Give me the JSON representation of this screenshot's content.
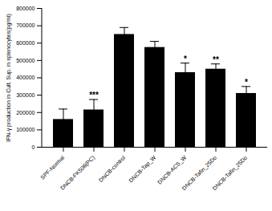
{
  "chart_data": {
    "type": "bar",
    "y_label": "IFN-γ production in Cult. Sup. in splenocytes(pg/ml)",
    "categories": [
      "SPF-Normal",
      "DNCB-FK506(PC)",
      "DNCB-control",
      "DNCB-Tap_W",
      "DNCB-ACS_W",
      "DNCB-Tafin_25Do",
      "DNCB-Tafin_25Do"
    ],
    "values": [
      160000,
      215000,
      650000,
      575000,
      430000,
      450000,
      310000
    ],
    "error": [
      60000,
      60000,
      40000,
      35000,
      55000,
      30000,
      40000
    ],
    "significance": [
      null,
      "***",
      null,
      null,
      "*",
      "**",
      "*"
    ],
    "color": "#000000",
    "ylim": [
      0,
      800000
    ],
    "yticks": [
      0,
      100000,
      200000,
      300000,
      400000,
      500000,
      600000,
      700000,
      800000
    ],
    "grid": false
  }
}
